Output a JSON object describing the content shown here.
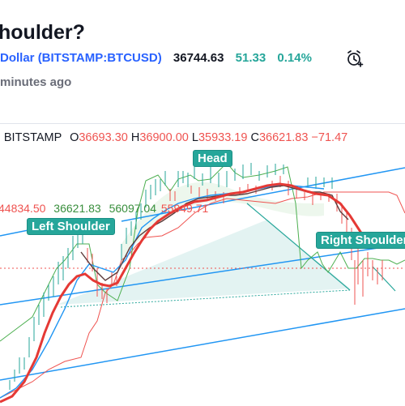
{
  "header": {
    "title": "houlder?",
    "symbol_name": "Dollar",
    "symbol_link": "(BITSTAMP:BTCUSD)",
    "price": "36744.63",
    "change": "51.33",
    "change_pct": "0.14%",
    "published": "minutes ago"
  },
  "legend": {
    "exchange": "· BITSTAMP",
    "o_label": "O",
    "o_value": "36693.30",
    "h_label": "H",
    "h_value": "36900.00",
    "l_label": "L",
    "l_value": "35933.19",
    "c_label": "C",
    "c_value": "36621.83",
    "change": "−71.47",
    "ichimoku": [
      "44834.50",
      "36621.83",
      "56097.04",
      "55949.71"
    ]
  },
  "annotations": {
    "head": "Head",
    "left_shoulder": "Left Shoulder",
    "right_shoulder": "Right Shoulder"
  },
  "colors": {
    "accent": "#2962ff",
    "up": "#26a69a",
    "down": "#ef5350",
    "tag": "#26a69a"
  },
  "icons": {
    "alarm": "alarm-clock-plus-icon"
  }
}
